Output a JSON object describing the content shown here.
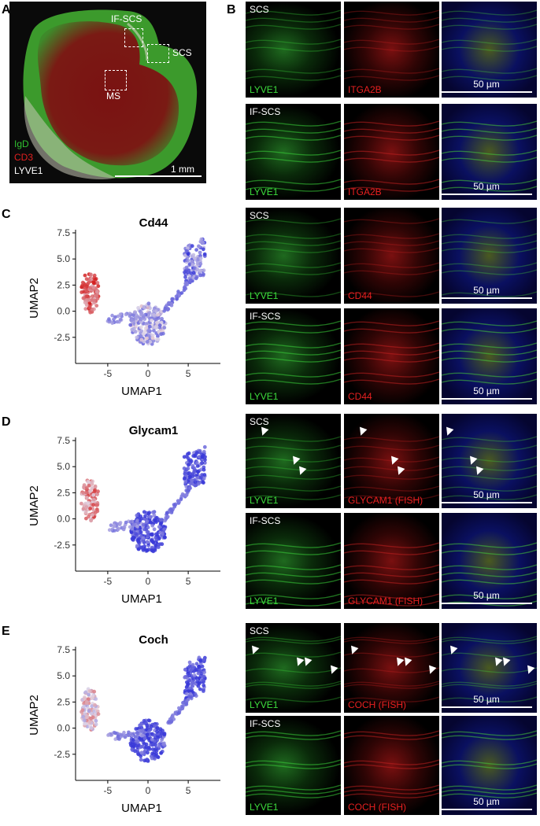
{
  "panel_labels": {
    "a": "A",
    "b": "B",
    "c": "C",
    "d": "D",
    "e": "E"
  },
  "panel_a": {
    "legend": [
      "IgD",
      "CD3",
      "LYVE1"
    ],
    "legend_colors": [
      "#2fbf2f",
      "#e02020",
      "#ffffff"
    ],
    "roi": [
      "IF-SCS",
      "SCS",
      "MS"
    ],
    "scale": "1 mm"
  },
  "panel_b": {
    "rows": [
      {
        "region": "SCS",
        "left": "LYVE1",
        "mid": "ITGA2B",
        "scale": "50 µm"
      },
      {
        "region": "IF-SCS",
        "left": "LYVE1",
        "mid": "ITGA2B",
        "scale": "50 µm"
      }
    ]
  },
  "panel_c_micro": {
    "rows": [
      {
        "region": "SCS",
        "left": "LYVE1",
        "mid": "CD44",
        "scale": "50 µm"
      },
      {
        "region": "IF-SCS",
        "left": "LYVE1",
        "mid": "CD44",
        "scale": "50 µm"
      }
    ]
  },
  "panel_d_micro": {
    "rows": [
      {
        "region": "SCS",
        "left": "LYVE1",
        "mid": "GLYCAM1 (FISH)",
        "scale": "50 µm"
      },
      {
        "region": "IF-SCS",
        "left": "LYVE1",
        "mid": "GLYCAM1 (FISH)",
        "scale": "50 µm"
      }
    ]
  },
  "panel_e_micro": {
    "rows": [
      {
        "region": "SCS",
        "left": "LYVE1",
        "mid": "COCH (FISH)",
        "scale": "50 µm"
      },
      {
        "region": "IF-SCS",
        "left": "LYVE1",
        "mid": "COCH (FISH)",
        "scale": "50 µm"
      }
    ]
  },
  "colors": {
    "green_label": "#3ddc3d",
    "red_label": "#e82020",
    "low": "#3a3ad8",
    "high": "#d42020"
  },
  "chart_data": [
    {
      "type": "scatter",
      "title": "Cd44",
      "xlabel": "UMAP1",
      "ylabel": "UMAP2",
      "xticks": [
        "-5",
        "0",
        "5"
      ],
      "yticks": [
        "7.5",
        "5.0",
        "2.5",
        "0.0",
        "-2.5"
      ],
      "xlim": [
        -9,
        9
      ],
      "ylim": [
        -5,
        7.5
      ],
      "clusters": [
        {
          "center": [
            -7.2,
            1.8
          ],
          "spread": [
            1.1,
            2.0
          ],
          "n": 110,
          "expr": 0.85
        },
        {
          "center": [
            0,
            -1.2
          ],
          "spread": [
            2.2,
            2.0
          ],
          "n": 200,
          "expr": 0.35
        },
        {
          "center": [
            5.8,
            4.8
          ],
          "spread": [
            1.3,
            1.8
          ],
          "n": 120,
          "expr": 0.2
        }
      ]
    },
    {
      "type": "scatter",
      "title": "Glycam1",
      "xlabel": "UMAP1",
      "ylabel": "UMAP2",
      "xticks": [
        "-5",
        "0",
        "5"
      ],
      "yticks": [
        "7.5",
        "5.0",
        "2.5",
        "0.0",
        "-2.5"
      ],
      "xlim": [
        -9,
        9
      ],
      "ylim": [
        -5,
        7.5
      ],
      "clusters": [
        {
          "center": [
            -7.2,
            1.8
          ],
          "spread": [
            1.1,
            2.0
          ],
          "n": 110,
          "expr": 0.7
        },
        {
          "center": [
            0,
            -1.2
          ],
          "spread": [
            2.2,
            2.0
          ],
          "n": 200,
          "expr": 0.02
        },
        {
          "center": [
            5.8,
            4.8
          ],
          "spread": [
            1.3,
            1.8
          ],
          "n": 120,
          "expr": 0.02
        }
      ]
    },
    {
      "type": "scatter",
      "title": "Coch",
      "xlabel": "UMAP1",
      "ylabel": "UMAP2",
      "xticks": [
        "-5",
        "0",
        "5"
      ],
      "yticks": [
        "7.5",
        "5.0",
        "2.5",
        "0.0",
        "-2.5"
      ],
      "xlim": [
        -9,
        9
      ],
      "ylim": [
        -5,
        7.5
      ],
      "clusters": [
        {
          "center": [
            -7.2,
            1.8
          ],
          "spread": [
            1.1,
            2.0
          ],
          "n": 110,
          "expr": 0.55
        },
        {
          "center": [
            0,
            -1.2
          ],
          "spread": [
            2.2,
            2.0
          ],
          "n": 200,
          "expr": 0.03
        },
        {
          "center": [
            5.8,
            4.8
          ],
          "spread": [
            1.3,
            1.8
          ],
          "n": 120,
          "expr": 0.03
        }
      ]
    }
  ]
}
